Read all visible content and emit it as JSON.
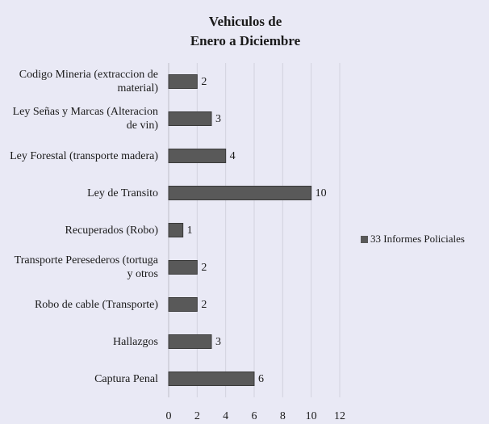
{
  "chart_data": {
    "type": "barh",
    "title": [
      "Vehiculos de",
      "Enero a Diciembre"
    ],
    "categories": [
      "Codigo Mineria (extraccion de material)",
      "Ley Señas y Marcas (Alteracion de vin)",
      "Ley Forestal (transporte madera)",
      "Ley de Transito",
      "Recuperados (Robo)",
      "Transporte Peresederos (tortuga y otros",
      "Robo de cable (Transporte)",
      "Hallazgos",
      "Captura Penal"
    ],
    "series": [
      {
        "name": "33 Informes Policiales",
        "color": "#595959",
        "values": [
          2,
          3,
          4,
          10,
          1,
          2,
          2,
          3,
          6
        ]
      }
    ],
    "xlim": [
      0,
      12
    ],
    "xticks": [
      0,
      2,
      4,
      6,
      8,
      10,
      12
    ],
    "grid": true,
    "legend": "right"
  }
}
